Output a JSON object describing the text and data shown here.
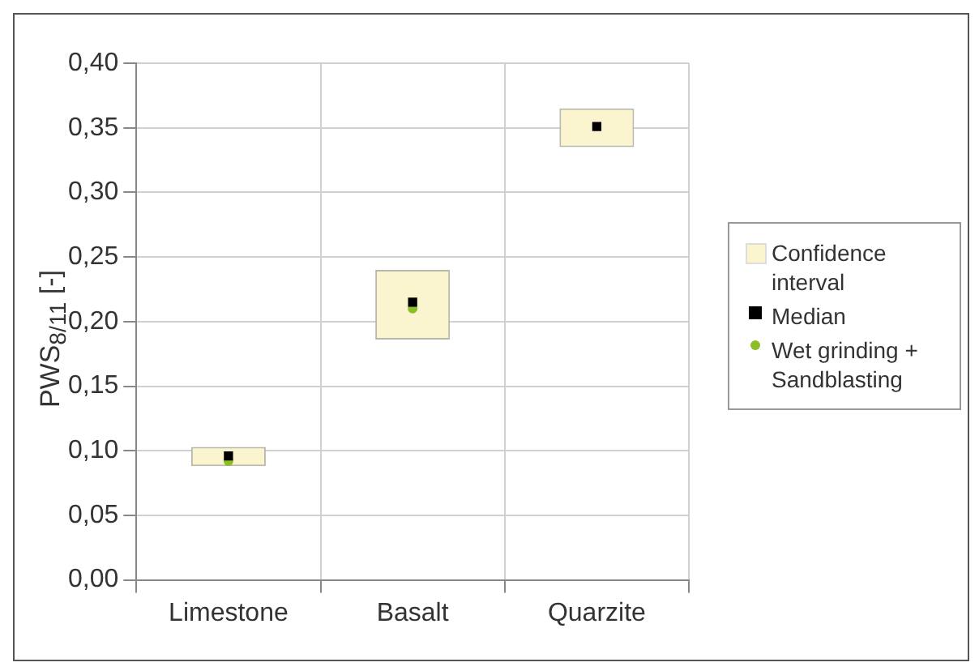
{
  "chart_data": {
    "type": "bar",
    "ylabel": "PWS$_{8/11}$ [-]",
    "categories": [
      "Limestone",
      "Basalt",
      "Quarzite"
    ],
    "series": [
      {
        "name": "Confidence interval",
        "type": "bar",
        "color": "#fbf5cf",
        "base": [
          0.088,
          0.186,
          0.335
        ],
        "values": [
          0.015,
          0.054,
          0.03
        ]
      },
      {
        "name": "Median",
        "type": "scatter",
        "color": "#000000",
        "marker": "square",
        "values": [
          0.096,
          0.215,
          0.351
        ]
      },
      {
        "name": "Wet grinding + Sandblasting",
        "type": "scatter",
        "color": "#8cbf26",
        "marker": "circle",
        "values": [
          0.092,
          0.21,
          null
        ]
      }
    ],
    "ylim": [
      0,
      0.4
    ],
    "yticks": [
      {
        "value": 0,
        "label": "0,00"
      },
      {
        "value": 0.05,
        "label": "0,05"
      },
      {
        "value": 0.1,
        "label": "0,10"
      },
      {
        "value": 0.15,
        "label": "0,15"
      },
      {
        "value": 0.2,
        "label": "0,20"
      },
      {
        "value": 0.25,
        "label": "0,25"
      },
      {
        "value": 0.3,
        "label": "0,30"
      },
      {
        "value": 0.35,
        "label": "0,35"
      },
      {
        "value": 0.4,
        "label": "0,40"
      }
    ],
    "grid": true,
    "legend": "right"
  }
}
